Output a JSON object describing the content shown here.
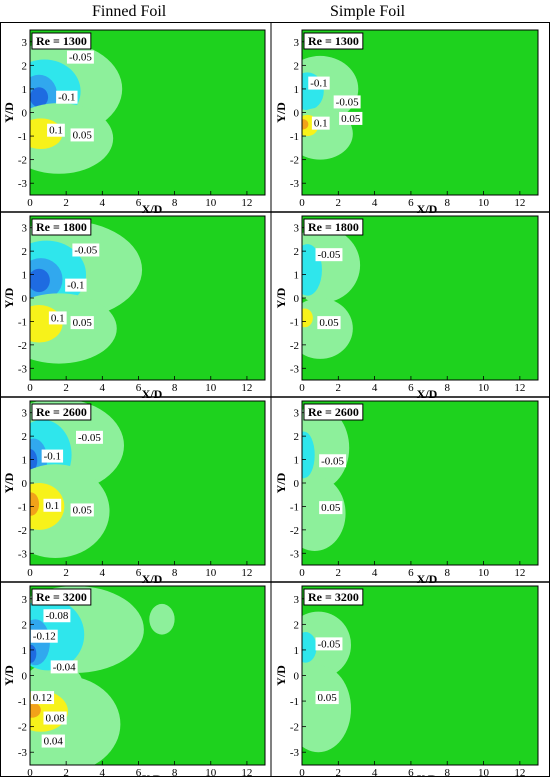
{
  "column_titles": [
    "Finned Foil",
    "Simple Foil"
  ],
  "colors": {
    "background_green": "#1ed21e",
    "light_green": "#8df09b",
    "cyan": "#2fe6ec",
    "light_blue": "#31a8ee",
    "blue": "#1e6be1",
    "yellow": "#f7f21a",
    "orange": "#f2a21a"
  },
  "chart_data": [
    {
      "type": "heatmap",
      "column": "Finned Foil",
      "re_label": "Re = 1300",
      "xlabel": "X/D",
      "ylabel": "Y/D",
      "xlim": [
        0,
        13
      ],
      "ylim": [
        -3.5,
        3.5
      ],
      "x_ticks": [
        0,
        2,
        4,
        6,
        8,
        10,
        12
      ],
      "y_ticks": [
        3,
        2,
        1,
        0,
        -1,
        -2,
        -3
      ],
      "contour_labels": [
        "-0.05",
        "-0.1",
        "0.1",
        "0.05"
      ]
    },
    {
      "type": "heatmap",
      "column": "Simple Foil",
      "re_label": "Re = 1300",
      "xlabel": "X/D",
      "ylabel": "Y/D",
      "xlim": [
        0,
        13
      ],
      "ylim": [
        -3.5,
        3.5
      ],
      "x_ticks": [
        0,
        2,
        4,
        6,
        8,
        10,
        12
      ],
      "y_ticks": [
        3,
        2,
        1,
        0,
        -1,
        -2,
        -3
      ],
      "contour_labels": [
        "-0.1",
        "-0.05",
        "0.1",
        "0.05"
      ]
    },
    {
      "type": "heatmap",
      "column": "Finned Foil",
      "re_label": "Re = 1800",
      "xlabel": "X/D",
      "ylabel": "Y/D",
      "xlim": [
        0,
        13
      ],
      "ylim": [
        -3.5,
        3.5
      ],
      "x_ticks": [
        0,
        2,
        4,
        6,
        8,
        10,
        12
      ],
      "y_ticks": [
        3,
        2,
        1,
        0,
        -1,
        -2,
        -3
      ],
      "contour_labels": [
        "-0.05",
        "-0.1",
        "0.1",
        "0.05"
      ]
    },
    {
      "type": "heatmap",
      "column": "Simple Foil",
      "re_label": "Re = 1800",
      "xlabel": "X/D",
      "ylabel": "Y/D",
      "xlim": [
        0,
        13
      ],
      "ylim": [
        -3.5,
        3.5
      ],
      "x_ticks": [
        0,
        2,
        4,
        6,
        8,
        10,
        12
      ],
      "y_ticks": [
        3,
        2,
        1,
        0,
        -1,
        -2,
        -3
      ],
      "contour_labels": [
        "-0.05",
        "0.05"
      ]
    },
    {
      "type": "heatmap",
      "column": "Finned Foil",
      "re_label": "Re = 2600",
      "xlabel": "X/D",
      "ylabel": "Y/D",
      "xlim": [
        0,
        13
      ],
      "ylim": [
        -3.5,
        3.5
      ],
      "x_ticks": [
        0,
        2,
        4,
        6,
        8,
        10,
        12
      ],
      "y_ticks": [
        3,
        2,
        1,
        0,
        -1,
        -2,
        -3
      ],
      "contour_labels": [
        "-0.05",
        "-0.1",
        "0.1",
        "0.05"
      ]
    },
    {
      "type": "heatmap",
      "column": "Simple Foil",
      "re_label": "Re = 2600",
      "xlabel": "X/D",
      "ylabel": "Y/D",
      "xlim": [
        0,
        13
      ],
      "ylim": [
        -3.5,
        3.5
      ],
      "x_ticks": [
        0,
        2,
        4,
        6,
        8,
        10,
        12
      ],
      "y_ticks": [
        3,
        2,
        1,
        0,
        -1,
        -2,
        -3
      ],
      "contour_labels": [
        "-0.05",
        "0.05"
      ]
    },
    {
      "type": "heatmap",
      "column": "Finned Foil",
      "re_label": "Re = 3200",
      "xlabel": "X/D",
      "ylabel": "Y/D",
      "xlim": [
        0,
        13
      ],
      "ylim": [
        -3.5,
        3.5
      ],
      "x_ticks": [
        0,
        2,
        4,
        6,
        8,
        10,
        12
      ],
      "y_ticks": [
        3,
        2,
        1,
        0,
        -1,
        -2,
        -3
      ],
      "contour_labels": [
        "-0.08",
        "-0.12",
        "-0.04",
        "0.12",
        "0.08",
        "0.04"
      ]
    },
    {
      "type": "heatmap",
      "column": "Simple Foil",
      "re_label": "Re = 3200",
      "xlabel": "X/D",
      "ylabel": "Y/D",
      "xlim": [
        0,
        13
      ],
      "ylim": [
        -3.5,
        3.5
      ],
      "x_ticks": [
        0,
        2,
        4,
        6,
        8,
        10,
        12
      ],
      "y_ticks": [
        3,
        2,
        1,
        0,
        -1,
        -2,
        -3
      ],
      "contour_labels": [
        "-0.05",
        "0.05"
      ]
    }
  ]
}
